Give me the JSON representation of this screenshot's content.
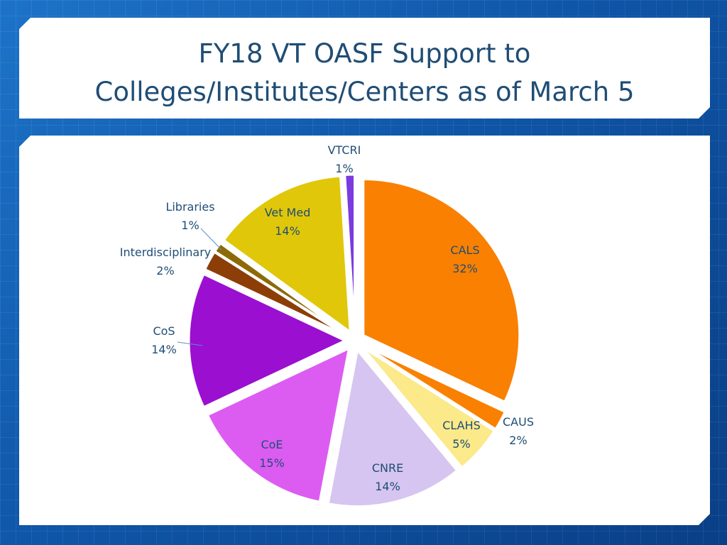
{
  "slide": {
    "title_line1": "FY18 VT OASF Support to",
    "title_line2": "Colleges/Institutes/Centers as of March 5"
  },
  "chart_data": {
    "type": "pie",
    "title": "FY18 VT OASF Support to Colleges/Institutes/Centers as of March 5",
    "slices": [
      {
        "label": "CALS",
        "value": 32,
        "display": "32%",
        "color": "#f98000"
      },
      {
        "label": "CAUS",
        "value": 2,
        "display": "2%",
        "color": "#f98000"
      },
      {
        "label": "CLAHS",
        "value": 5,
        "display": "5%",
        "color": "#fbe98a"
      },
      {
        "label": "CNRE",
        "value": 14,
        "display": "14%",
        "color": "#d6c5f0"
      },
      {
        "label": "CoE",
        "value": 15,
        "display": "15%",
        "color": "#dc5cf2"
      },
      {
        "label": "CoS",
        "value": 14,
        "display": "14%",
        "color": "#9b0fd0"
      },
      {
        "label": "Interdisciplinary",
        "value": 2,
        "display": "2%",
        "color": "#8c3e06"
      },
      {
        "label": "Libraries",
        "value": 1,
        "display": "1%",
        "color": "#8c6a06"
      },
      {
        "label": "Vet Med",
        "value": 14,
        "display": "14%",
        "color": "#e0c70a"
      },
      {
        "label": "VTCRI",
        "value": 1,
        "display": "1%",
        "color": "#7b3bdf"
      }
    ]
  }
}
